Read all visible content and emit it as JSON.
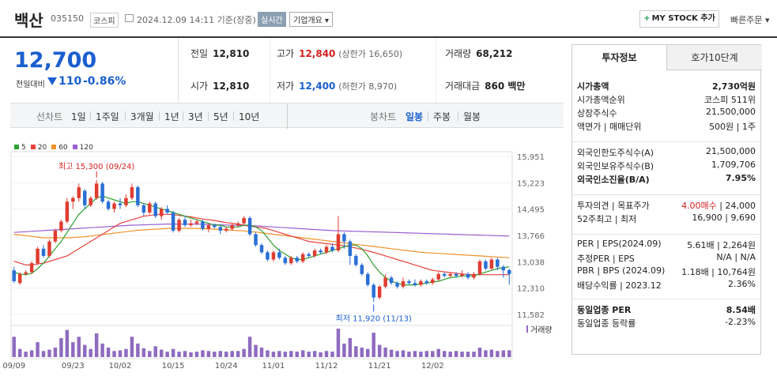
{
  "header": {
    "stock_name": "백산",
    "stock_code": "035150",
    "market": "코스피",
    "datetime": "2024.12.09 14:11 기준(장중)",
    "realtime_label": "실시간",
    "company_info_label": "기업개요",
    "mystock_label": "MY STOCK 추가",
    "quick_order_label": "빠른주문"
  },
  "price": {
    "current": "12,700",
    "change_label": "전일대비",
    "change_value": "110",
    "change_pct": "-0.86%"
  },
  "stats": {
    "prev_close_label": "전일",
    "prev_close": "12,810",
    "high_label": "고가",
    "high": "12,840",
    "upper_limit": "(상한가 16,650)",
    "volume_label": "거래량",
    "volume": "68,212",
    "open_label": "시가",
    "open": "12,810",
    "low_label": "저가",
    "low": "12,400",
    "lower_limit": "(하한가 8,970)",
    "amount_label": "거래대금",
    "amount": "860 백만"
  },
  "toolbar": {
    "line_chart_label": "선차트",
    "periods": [
      "1일",
      "1주일",
      "3개월",
      "1년",
      "3년",
      "5년",
      "10년"
    ],
    "candle_label": "봉차트",
    "candle_periods": [
      "일봉",
      "주봉",
      "월봉"
    ],
    "active_candle": "일봉"
  },
  "chart_data": {
    "type": "candlestick",
    "legend": [
      {
        "name": "5",
        "color": "#2ca02c"
      },
      {
        "name": "20",
        "color": "#e8413c"
      },
      {
        "name": "60",
        "color": "#f0922b"
      },
      {
        "name": "120",
        "color": "#9a5fd0"
      }
    ],
    "y_ticks": [
      "15,951",
      "15,223",
      "14,495",
      "13,766",
      "13,038",
      "12,310",
      "11,582"
    ],
    "x_ticks": [
      "09/09",
      "09/23",
      "10/02",
      "10/15",
      "10/24",
      "11/01",
      "11/12",
      "11/21",
      "12/02"
    ],
    "high_annotation": "최고 15,300 (09/24)",
    "low_annotation": "최저 11,920 (11/13)",
    "volume_label": "거래량",
    "ylim": [
      11582,
      15951
    ],
    "candles": [
      [
        12800,
        12500,
        12900,
        12450
      ],
      [
        12450,
        12700,
        12750,
        12400
      ],
      [
        12700,
        12750,
        12800,
        12650
      ],
      [
        12750,
        13000,
        13050,
        12700
      ],
      [
        13000,
        13400,
        13450,
        12950
      ],
      [
        13400,
        13200,
        13500,
        13150
      ],
      [
        13200,
        13600,
        13650,
        13150
      ],
      [
        13600,
        13900,
        13950,
        13550
      ],
      [
        13900,
        14150,
        14200,
        13850
      ],
      [
        14150,
        14700,
        14800,
        14100
      ],
      [
        14700,
        14800,
        14850,
        14500
      ],
      [
        14800,
        15100,
        15200,
        14700
      ],
      [
        15000,
        14600,
        15050,
        14500
      ],
      [
        14600,
        14800,
        14850,
        14550
      ],
      [
        14800,
        15200,
        15300,
        14750
      ],
      [
        15200,
        14700,
        15250,
        14650
      ],
      [
        14700,
        14500,
        14750,
        14450
      ],
      [
        14500,
        14650,
        14700,
        14400
      ],
      [
        14650,
        14600,
        14800,
        14500
      ],
      [
        14600,
        14800,
        14900,
        14550
      ],
      [
        14800,
        15100,
        15200,
        14750
      ],
      [
        15100,
        14600,
        15150,
        14550
      ],
      [
        14600,
        14400,
        14650,
        14300
      ],
      [
        14400,
        14650,
        14700,
        14350
      ],
      [
        14650,
        14300,
        14700,
        14250
      ],
      [
        14300,
        14500,
        14550,
        14200
      ],
      [
        14500,
        14400,
        14600,
        14350
      ],
      [
        14400,
        13900,
        14450,
        13850
      ],
      [
        13900,
        14200,
        14250,
        13850
      ],
      [
        14200,
        14050,
        14300,
        14000
      ],
      [
        14050,
        14100,
        14200,
        14000
      ],
      [
        14100,
        14150,
        14200,
        14050
      ],
      [
        14150,
        13950,
        14200,
        13900
      ],
      [
        13950,
        14050,
        14100,
        13850
      ],
      [
        14050,
        14000,
        14100,
        13950
      ],
      [
        14000,
        13900,
        14050,
        13800
      ],
      [
        13900,
        13950,
        14000,
        13850
      ],
      [
        13950,
        14050,
        14100,
        13900
      ],
      [
        14050,
        14100,
        14150,
        14000
      ],
      [
        14100,
        14250,
        14300,
        14050
      ],
      [
        14250,
        13800,
        14300,
        13750
      ],
      [
        13800,
        13500,
        13850,
        13450
      ],
      [
        13500,
        13300,
        13550,
        13250
      ],
      [
        13300,
        13100,
        13350,
        13050
      ],
      [
        13100,
        13300,
        13350,
        13050
      ],
      [
        13300,
        13150,
        13400,
        13100
      ],
      [
        13150,
        13000,
        13200,
        12950
      ],
      [
        13000,
        13150,
        13200,
        12950
      ],
      [
        13150,
        13050,
        13200,
        13000
      ],
      [
        13050,
        13250,
        13300,
        13000
      ],
      [
        13250,
        13200,
        13300,
        13150
      ],
      [
        13200,
        13350,
        13400,
        13150
      ],
      [
        13350,
        13300,
        13400,
        13250
      ],
      [
        13300,
        13450,
        13500,
        13250
      ],
      [
        13450,
        13350,
        13550,
        13300
      ],
      [
        13350,
        13800,
        14300,
        13300
      ],
      [
        13800,
        13600,
        13850,
        13400
      ],
      [
        13600,
        13200,
        13650,
        12950
      ],
      [
        13200,
        12950,
        13250,
        12900
      ],
      [
        12950,
        12700,
        13000,
        12650
      ],
      [
        12700,
        12400,
        12750,
        12350
      ],
      [
        12400,
        12050,
        12450,
        11920
      ],
      [
        12050,
        12350,
        12400,
        12000
      ],
      [
        12350,
        12600,
        12700,
        12300
      ],
      [
        12600,
        12450,
        12650,
        12400
      ],
      [
        12450,
        12350,
        12500,
        12300
      ],
      [
        12350,
        12500,
        12600,
        12300
      ],
      [
        12500,
        12450,
        12550,
        12400
      ],
      [
        12450,
        12400,
        12550,
        12350
      ],
      [
        12400,
        12500,
        12550,
        12350
      ],
      [
        12500,
        12450,
        12550,
        12400
      ],
      [
        12450,
        12550,
        12600,
        12400
      ],
      [
        12550,
        12700,
        12750,
        12500
      ],
      [
        12700,
        12650,
        12750,
        12600
      ],
      [
        12650,
        12700,
        12750,
        12600
      ],
      [
        12700,
        12650,
        12750,
        12600
      ],
      [
        12650,
        12700,
        12800,
        12600
      ],
      [
        12700,
        12600,
        12750,
        12550
      ],
      [
        12600,
        12700,
        12750,
        12550
      ],
      [
        12700,
        13050,
        13100,
        12650
      ],
      [
        13050,
        12850,
        13100,
        12800
      ],
      [
        12850,
        13100,
        13150,
        12800
      ],
      [
        13100,
        12900,
        13150,
        12800
      ],
      [
        12900,
        12800,
        12950,
        12600
      ],
      [
        12810,
        12700,
        12840,
        12400
      ]
    ],
    "volumes": [
      30,
      12,
      8,
      10,
      22,
      9,
      11,
      14,
      28,
      40,
      22,
      30,
      18,
      12,
      35,
      20,
      14,
      9,
      10,
      12,
      30,
      20,
      13,
      9,
      16,
      11,
      8,
      12,
      8,
      9,
      7,
      8,
      10,
      9,
      8,
      9,
      8,
      9,
      9,
      12,
      30,
      18,
      14,
      10,
      8,
      9,
      8,
      9,
      8,
      10,
      8,
      9,
      7,
      9,
      8,
      42,
      20,
      28,
      16,
      14,
      12,
      36,
      18,
      14,
      11,
      9,
      10,
      8,
      9,
      8,
      9,
      9,
      12,
      9,
      8,
      9,
      8,
      8,
      8,
      14,
      10,
      11,
      9,
      10,
      10
    ],
    "ma5": [
      12750,
      12700,
      12680,
      12720,
      12850,
      13000,
      13200,
      13400,
      13600,
      13850,
      14100,
      14350,
      14500,
      14650,
      14800,
      14850,
      14800,
      14750,
      14700,
      14650,
      14700,
      14700,
      14650,
      14600,
      14550,
      14500,
      14450,
      14400,
      14350,
      14300,
      14250,
      14200,
      14150,
      14100,
      14050,
      14050,
      14000,
      14000,
      14000,
      14050,
      14050,
      14000,
      13900,
      13700,
      13500,
      13350,
      13250,
      13150,
      13100,
      13100,
      13150,
      13200,
      13250,
      13300,
      13350,
      13400,
      13450,
      13500,
      13500,
      13400,
      13200,
      12950,
      12750,
      12600,
      12500,
      12450,
      12400,
      12400,
      12400,
      12420,
      12450,
      12480,
      12500,
      12550,
      12600,
      12620,
      12650,
      12650,
      12650,
      12700,
      12750,
      12800,
      12850,
      12880,
      12900
    ],
    "ma20": [
      13050,
      13000,
      12950,
      12950,
      12980,
      13000,
      13050,
      13100,
      13150,
      13200,
      13300,
      13400,
      13500,
      13600,
      13700,
      13800,
      13900,
      14000,
      14100,
      14150,
      14200,
      14250,
      14300,
      14320,
      14340,
      14350,
      14350,
      14340,
      14320,
      14300,
      14280,
      14250,
      14220,
      14200,
      14180,
      14150,
      14120,
      14100,
      14080,
      14050,
      14020,
      14000,
      13980,
      13950,
      13900,
      13850,
      13800,
      13750,
      13700,
      13650,
      13600,
      13580,
      13560,
      13540,
      13520,
      13500,
      13480,
      13450,
      13420,
      13380,
      13340,
      13300,
      13250,
      13200,
      13150,
      13100,
      13050,
      13000,
      12950,
      12900,
      12850,
      12800,
      12780,
      12760,
      12740,
      12720,
      12700,
      12690,
      12680,
      12680,
      12680,
      12680,
      12680,
      12680,
      12680
    ],
    "ma60": [
      13800,
      13780,
      13760,
      13740,
      13720,
      13700,
      13700,
      13700,
      13700,
      13700,
      13710,
      13720,
      13730,
      13750,
      13770,
      13790,
      13810,
      13830,
      13850,
      13870,
      13890,
      13910,
      13920,
      13930,
      13940,
      13950,
      13960,
      13960,
      13960,
      13960,
      13960,
      13960,
      13950,
      13950,
      13940,
      13930,
      13920,
      13910,
      13900,
      13890,
      13870,
      13860,
      13840,
      13820,
      13800,
      13780,
      13760,
      13740,
      13720,
      13700,
      13680,
      13660,
      13640,
      13620,
      13600,
      13580,
      13560,
      13540,
      13520,
      13500,
      13480,
      13460,
      13440,
      13420,
      13400,
      13380,
      13360,
      13340,
      13320,
      13300,
      13290,
      13280,
      13270,
      13260,
      13250,
      13240,
      13230,
      13220,
      13210,
      13200,
      13190,
      13180,
      13170,
      13160,
      13150
    ],
    "ma120": [
      13850,
      13860,
      13870,
      13880,
      13890,
      13900,
      13910,
      13920,
      13930,
      13940,
      13950,
      13960,
      13970,
      13980,
      13990,
      14000,
      14010,
      14020,
      14030,
      14040,
      14050,
      14055,
      14060,
      14065,
      14070,
      14075,
      14080,
      14080,
      14080,
      14080,
      14080,
      14080,
      14075,
      14070,
      14065,
      14060,
      14055,
      14050,
      14045,
      14040,
      14035,
      14030,
      14020,
      14010,
      14000,
      13990,
      13980,
      13970,
      13960,
      13950,
      13940,
      13930,
      13920,
      13910,
      13900,
      13895,
      13890,
      13885,
      13880,
      13875,
      13870,
      13865,
      13860,
      13855,
      13850,
      13845,
      13840,
      13835,
      13830,
      13825,
      13820,
      13815,
      13810,
      13805,
      13800,
      13795,
      13790,
      13785,
      13780,
      13775,
      13770,
      13765,
      13760,
      13755,
      13750
    ]
  },
  "right_panel": {
    "tab_active": "투자정보",
    "tab_inactive": "호가10단계",
    "rows1": [
      {
        "k": "시가총액",
        "v": "2,730억원",
        "bold": true
      },
      {
        "k": "시가총액순위",
        "v": "코스피 511위"
      },
      {
        "k": "상장주식수",
        "v": "21,500,000"
      },
      {
        "k": "액면가 | 매매단위",
        "v": "500원 | 1주"
      }
    ],
    "rows2": [
      {
        "k": "외국인한도주식수(A)",
        "v": "21,500,000"
      },
      {
        "k": "외국인보유주식수(B)",
        "v": "1,709,706"
      },
      {
        "k": "외국인소진율(B/A)",
        "v": "7.95%",
        "bold": true
      }
    ],
    "rows3": [
      {
        "k": "투자의견 | 목표주가",
        "v_red": "4.00매수",
        "v": "24,000"
      },
      {
        "k": "52주최고 | 최저",
        "v": "16,900 | 9,690"
      }
    ],
    "rows4": [
      {
        "k": "PER | EPS(2024.09)",
        "v": "5.61배 | 2,264원"
      },
      {
        "k": "추정PER | EPS",
        "v": "N/A | N/A"
      },
      {
        "k": "PBR | BPS (2024.09)",
        "v": "1.18배 | 10,764원"
      },
      {
        "k": "배당수익률 | 2023.12",
        "v": "2.36%"
      }
    ],
    "rows5": [
      {
        "k": "동일업종 PER",
        "v": "8.54배",
        "bold": true
      },
      {
        "k": "동일업종 등락률",
        "v": "-2.23%",
        "neg": true
      }
    ]
  }
}
